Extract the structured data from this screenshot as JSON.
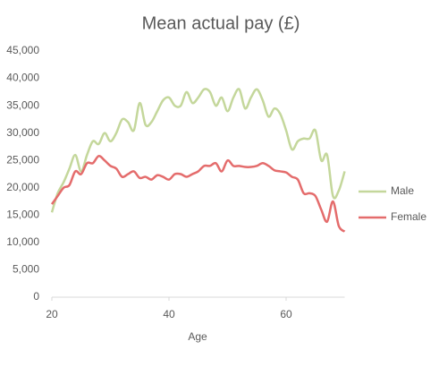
{
  "chart_data": {
    "type": "line",
    "title": "Mean actual pay (£)",
    "x_label": "Age",
    "x": [
      20,
      21,
      22,
      23,
      24,
      25,
      26,
      27,
      28,
      29,
      30,
      31,
      32,
      33,
      34,
      35,
      36,
      37,
      38,
      39,
      40,
      41,
      42,
      43,
      44,
      45,
      46,
      47,
      48,
      49,
      50,
      51,
      52,
      53,
      54,
      55,
      56,
      57,
      58,
      59,
      60,
      61,
      62,
      63,
      64,
      65,
      66,
      67,
      68,
      69,
      70
    ],
    "series": [
      {
        "name": "Male",
        "color": "#c4d79b",
        "values": [
          15500,
          19000,
          21000,
          23500,
          26000,
          23000,
          26000,
          28500,
          28000,
          30000,
          28500,
          30000,
          32500,
          32000,
          30500,
          35500,
          31500,
          32000,
          34000,
          36000,
          36500,
          35000,
          35000,
          37500,
          35500,
          36500,
          38000,
          37500,
          35000,
          36500,
          34000,
          36500,
          38000,
          34500,
          36500,
          38000,
          36000,
          33000,
          34500,
          33500,
          30500,
          27000,
          28500,
          29000,
          29000,
          30500,
          25000,
          26000,
          18500,
          19500,
          23000
        ]
      },
      {
        "name": "Female",
        "color": "#e46c6c",
        "values": [
          17000,
          18500,
          20000,
          20500,
          23000,
          22500,
          24500,
          24500,
          25800,
          25000,
          24000,
          23500,
          22000,
          22500,
          23000,
          21800,
          22000,
          21500,
          22300,
          22000,
          21500,
          22500,
          22500,
          22000,
          22500,
          23000,
          24000,
          24000,
          24500,
          23000,
          25000,
          24000,
          24000,
          23800,
          23800,
          24000,
          24500,
          24000,
          23200,
          23000,
          22800,
          22000,
          21500,
          19000,
          19000,
          18500,
          16000,
          13800,
          17500,
          13000,
          12000
        ]
      }
    ],
    "xlim": [
      20,
      70
    ],
    "xticks": [
      20,
      40,
      60
    ],
    "ylim": [
      0,
      45000
    ],
    "yticks": [
      0,
      {
        "value": 5000,
        "label": "5,000"
      },
      {
        "value": 10000,
        "label": "10,000"
      },
      {
        "value": 15000,
        "label": "15,000"
      },
      {
        "value": 20000,
        "label": "20,000"
      },
      {
        "value": 25000,
        "label": "25,000"
      },
      {
        "value": 30000,
        "label": "30,000"
      },
      {
        "value": 35000,
        "label": "35,000"
      },
      {
        "value": 40000,
        "label": "40,000"
      },
      {
        "value": 45000,
        "label": "45,000"
      }
    ],
    "grid": false,
    "legend": "right"
  }
}
